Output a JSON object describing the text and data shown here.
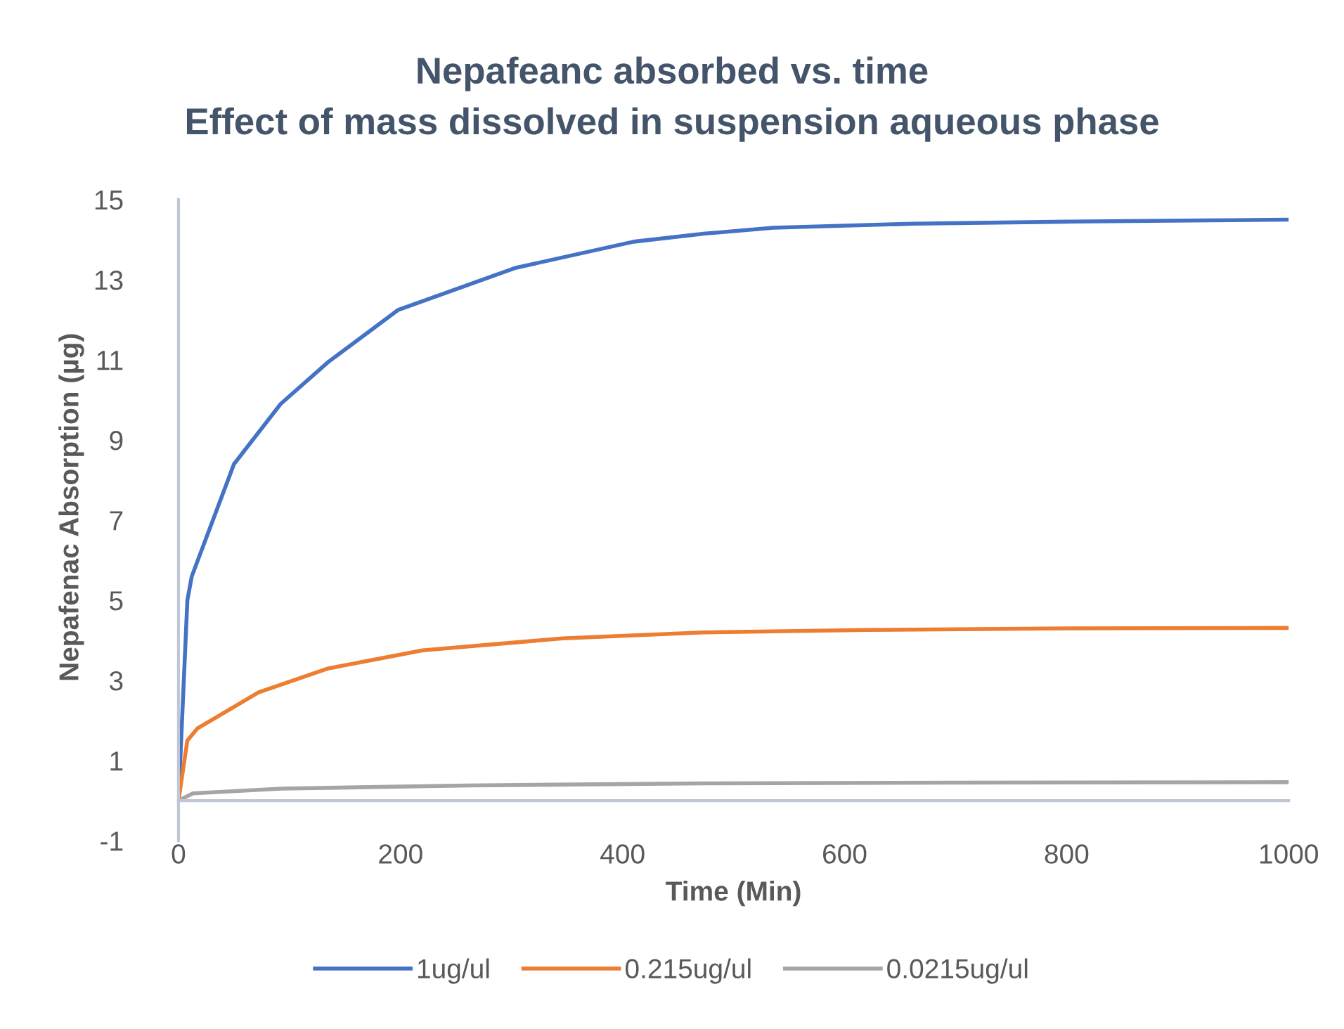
{
  "chart_data": {
    "type": "line",
    "title": "Nepafeanc absorbed vs. time\nEffect of mass dissolved in suspension aqueous phase",
    "xlabel": "Time (Min)",
    "ylabel": "Nepafenac Absorption (µg)",
    "xlim": [
      0,
      1000
    ],
    "xticks": [
      0,
      200,
      400,
      600,
      800,
      1000
    ],
    "ylim": [
      -1,
      15
    ],
    "yticks": [
      -1,
      1,
      3,
      5,
      7,
      9,
      11,
      13,
      15
    ],
    "grid": false,
    "legend": "bottom",
    "marker": "none",
    "line_style": "solid",
    "series": [
      {
        "name": "1ug/ul",
        "color": "#4472c4",
        "x": [
          0,
          8,
          12,
          50,
          92,
          135,
          198,
          304,
          410,
          473,
          536,
          663,
          800,
          1000
        ],
        "values": [
          0,
          5.0,
          5.6,
          8.4,
          9.9,
          10.95,
          12.25,
          13.3,
          13.95,
          14.15,
          14.3,
          14.4,
          14.45,
          14.5
        ]
      },
      {
        "name": "0.215ug/ul",
        "color": "#ed7d31",
        "x": [
          0,
          8,
          17,
          72,
          135,
          220,
          346,
          473,
          620,
          800,
          1000
        ],
        "values": [
          0,
          1.5,
          1.8,
          2.7,
          3.3,
          3.75,
          4.05,
          4.2,
          4.26,
          4.3,
          4.31
        ]
      },
      {
        "name": "0.0215ug/ul",
        "color": "#a5a5a5",
        "x": [
          0,
          13,
          93,
          262,
          473,
          700,
          1000
        ],
        "values": [
          0,
          0.18,
          0.3,
          0.38,
          0.43,
          0.45,
          0.46
        ]
      }
    ]
  }
}
